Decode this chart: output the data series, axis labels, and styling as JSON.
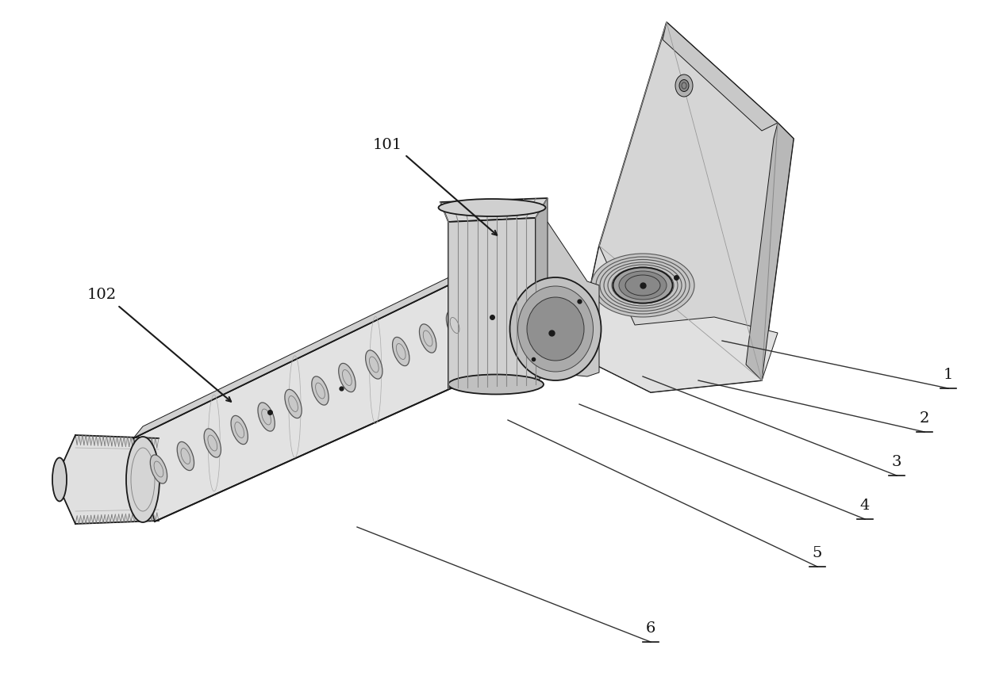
{
  "bg_color": "#ffffff",
  "line_color": "#1a1a1a",
  "fig_width": 12.4,
  "fig_height": 8.58,
  "dpi": 100
}
